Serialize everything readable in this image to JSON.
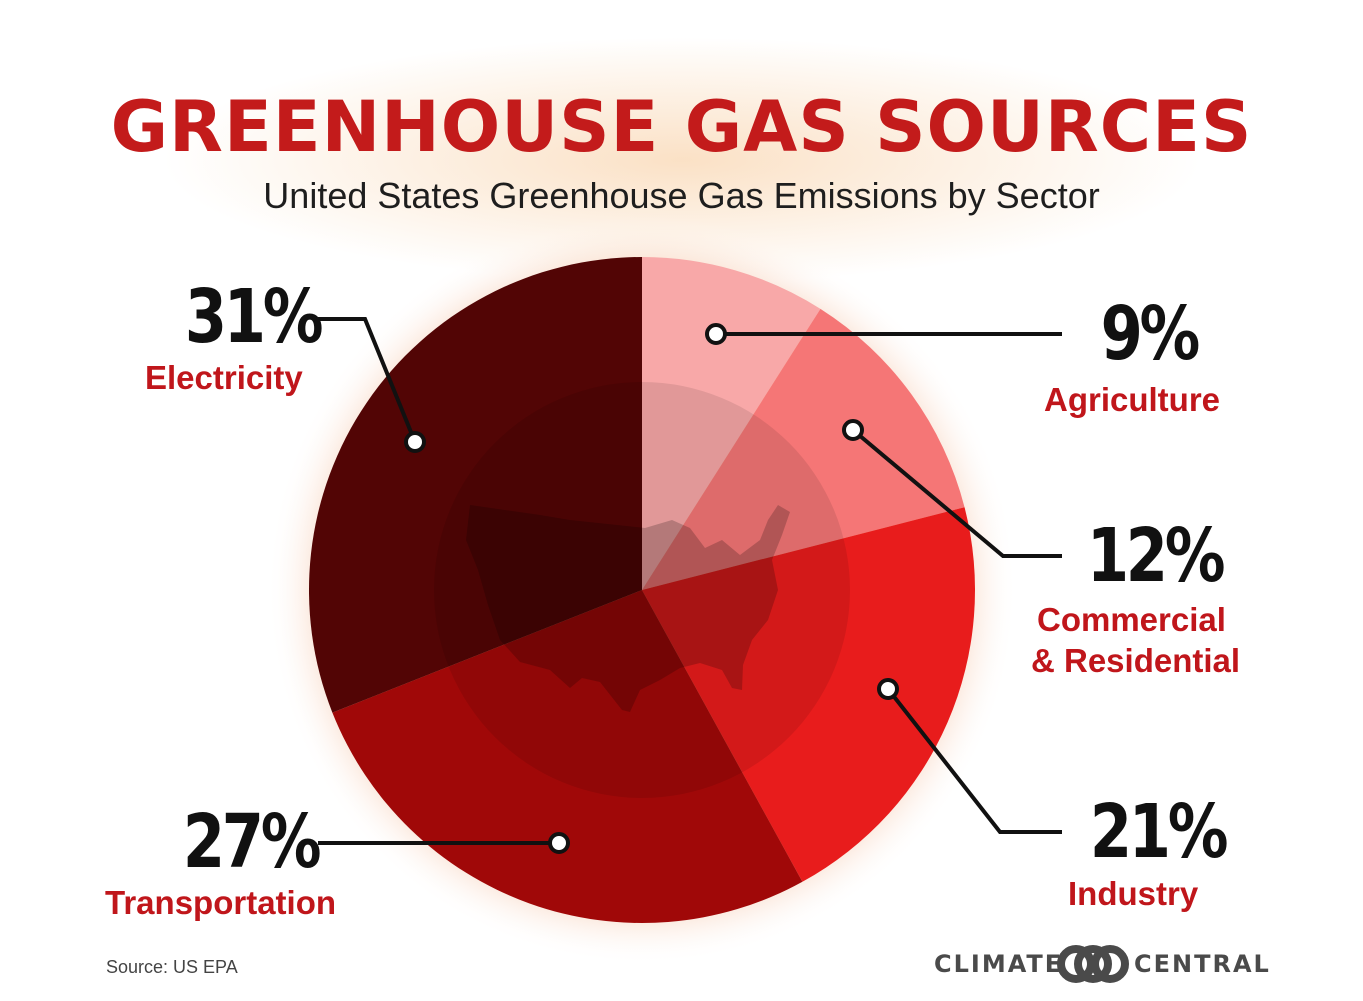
{
  "title": "GREENHOUSE GAS SOURCES",
  "subtitle": "United States Greenhouse Gas Emissions by Sector",
  "source": "Source: US EPA",
  "brand": {
    "left": "CLIMATE",
    "right": "CENTRAL"
  },
  "chart_data": {
    "type": "pie",
    "title": "GREENHOUSE GAS SOURCES",
    "subtitle": "United States Greenhouse Gas Emissions by Sector",
    "slices": [
      {
        "label": "Agriculture",
        "value": 9,
        "value_label": "9%",
        "color": "#f8a8a8"
      },
      {
        "label": "Commercial & Residential",
        "label_lines": [
          "Commercial",
          "& Residential"
        ],
        "value": 12,
        "value_label": "12%",
        "color": "#f57676"
      },
      {
        "label": "Industry",
        "value": 21,
        "value_label": "21%",
        "color": "#e81c1c"
      },
      {
        "label": "Transportation",
        "value": 27,
        "value_label": "27%",
        "color": "#a00808"
      },
      {
        "label": "Electricity",
        "value": 31,
        "value_label": "31%",
        "color": "#520505"
      }
    ]
  }
}
